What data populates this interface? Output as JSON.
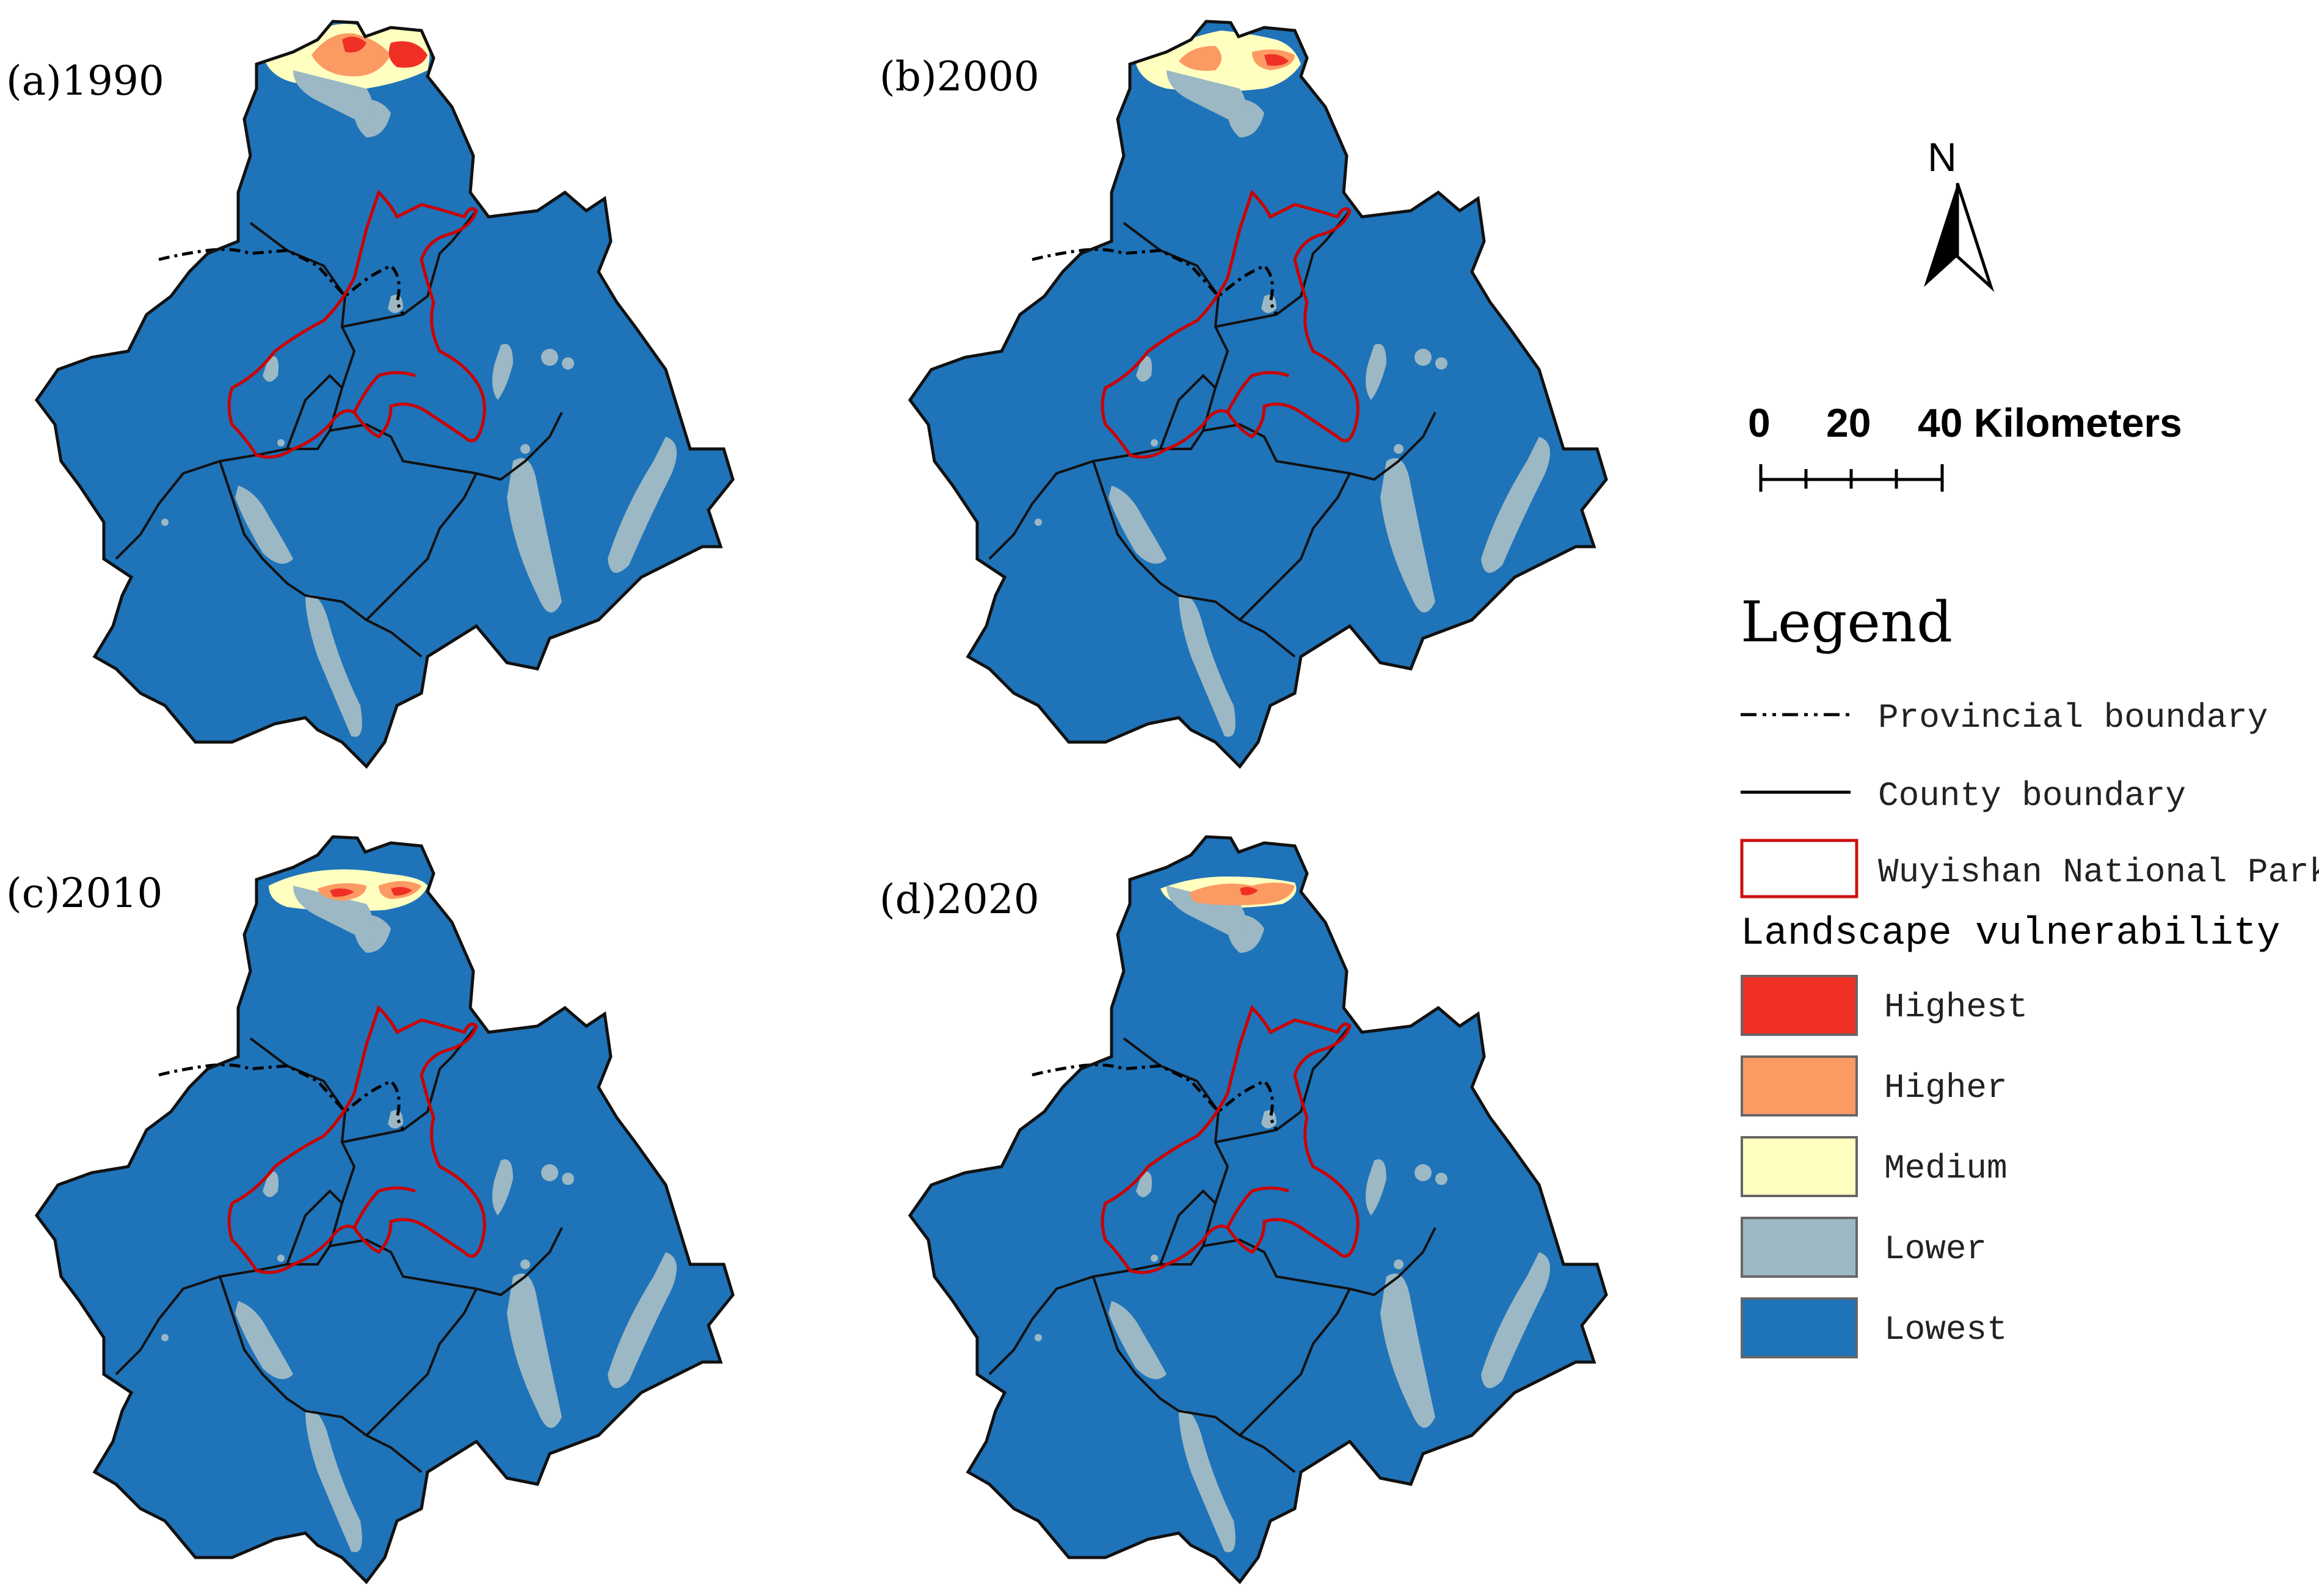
{
  "panels": [
    {
      "id": "a",
      "label": "(a)1990"
    },
    {
      "id": "b",
      "label": "(b)2000"
    },
    {
      "id": "c",
      "label": "(c)2010"
    },
    {
      "id": "d",
      "label": "(d)2020"
    }
  ],
  "north_arrow": {
    "label": "N"
  },
  "scale_bar": {
    "ticks": [
      "0",
      "20",
      "40 Kilometers"
    ]
  },
  "legend": {
    "title": "Legend",
    "boundaries": [
      {
        "label": "Provincial boundary",
        "style": "dash-dot"
      },
      {
        "label": "County boundary",
        "style": "solid"
      },
      {
        "label": "Wuyishan National Park",
        "style": "red-outline"
      }
    ],
    "classes_title": "Landscape vulnerability",
    "classes": [
      {
        "label": "Highest",
        "color": "#f03024"
      },
      {
        "label": "Higher",
        "color": "#fc9a64"
      },
      {
        "label": "Medium",
        "color": "#ffffbf"
      },
      {
        "label": "Lower",
        "color": "#9bb8c4"
      },
      {
        "label": "Lowest",
        "color": "#1f73b9"
      }
    ]
  },
  "colors": {
    "lowest": "#1f73b9",
    "lower": "#9bb8c4",
    "medium": "#ffffbf",
    "higher": "#fc9a64",
    "highest": "#f03024",
    "park_outline": "#cc0000"
  }
}
